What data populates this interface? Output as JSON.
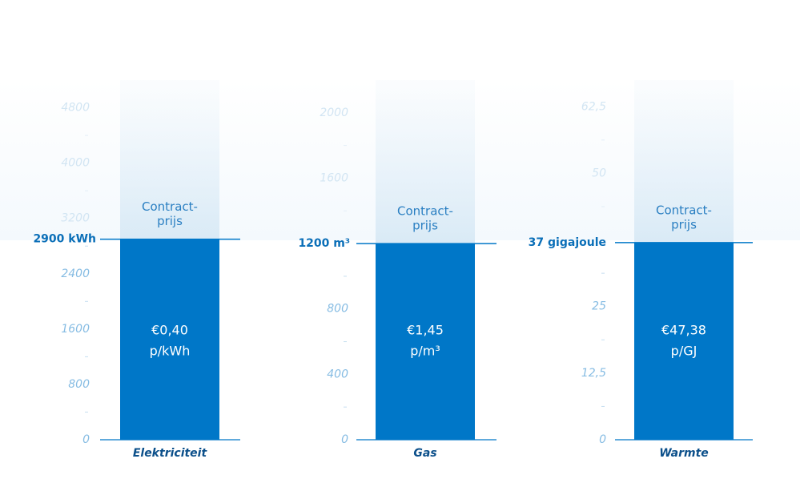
{
  "chart_data": [
    {
      "type": "bar",
      "categories": [
        "Elektriciteit"
      ],
      "values": [
        2900
      ],
      "value_labels": [
        "2900 kWh"
      ],
      "annotation": [
        "Contract-",
        "prijs"
      ],
      "price": [
        "€0,40",
        "p/kWh"
      ],
      "color": "#0077c8",
      "ylim": [
        0,
        5200
      ],
      "yticks": [
        0,
        800,
        1600,
        2400,
        3200,
        4000,
        4800
      ],
      "minor_yticks": [
        400,
        1200,
        2000,
        2800,
        3600,
        4400
      ]
    },
    {
      "type": "bar",
      "categories": [
        "Gas"
      ],
      "values": [
        1200
      ],
      "value_labels": [
        "1200 m³"
      ],
      "annotation": [
        "Contract-",
        "prijs"
      ],
      "price": [
        "€1,45",
        "p/m³"
      ],
      "color": "#0077c8",
      "ylim": [
        0,
        2200
      ],
      "yticks": [
        0,
        400,
        800,
        1600,
        2000
      ],
      "minor_yticks": [
        200,
        600,
        1000,
        1400,
        1800
      ]
    },
    {
      "type": "bar",
      "categories": [
        "Warmte"
      ],
      "values": [
        37
      ],
      "value_labels": [
        "37 gigajoule"
      ],
      "annotation": [
        "Contract-",
        "prijs"
      ],
      "price": [
        "€47,38",
        "p/GJ"
      ],
      "color": "#0077c8",
      "ylim": [
        0,
        67.5
      ],
      "yticks": [
        0,
        {
          "value": 12.5,
          "label": "12,5"
        },
        25,
        50,
        {
          "value": 62.5,
          "label": "62,5"
        }
      ],
      "minor_yticks": [
        6.25,
        18.75,
        31.25,
        43.75,
        56.25
      ]
    }
  ]
}
